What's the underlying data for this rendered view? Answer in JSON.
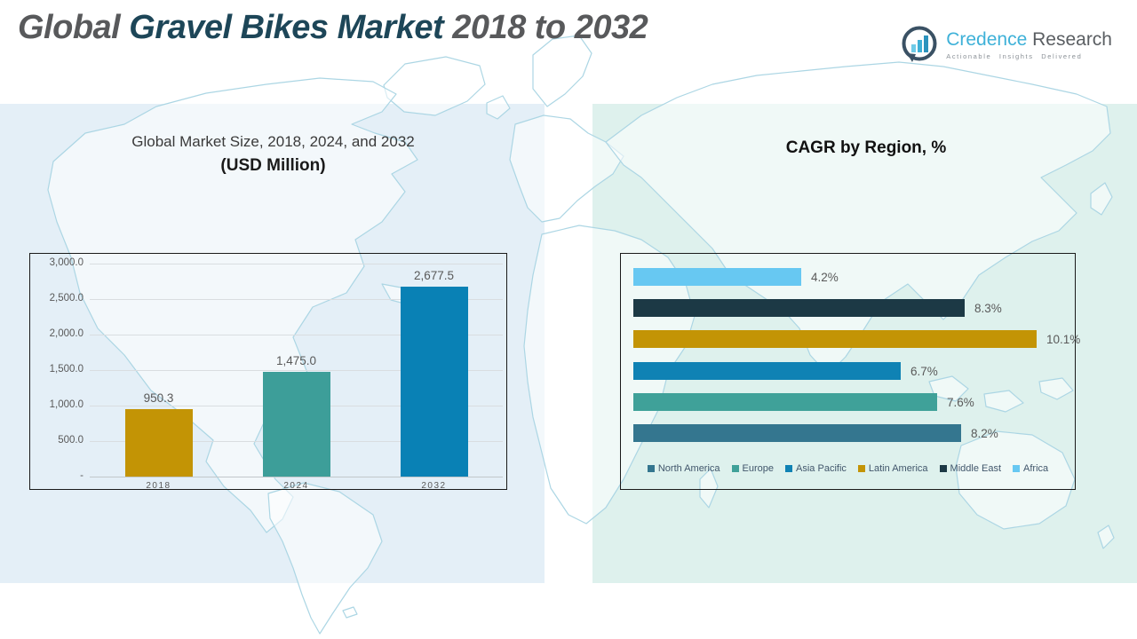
{
  "header": {
    "title": {
      "part1": "Global ",
      "part2": "Gravel Bikes Market ",
      "part3": "2018 to 2032"
    },
    "logo": {
      "brand1": "Credence",
      "brand2": " Research",
      "tagline": "Actionable Insights Delivered",
      "brand1_color": "#3eb1d8",
      "brand2_color": "#5a5e62",
      "icon": "bar-chart-bubble-icon"
    }
  },
  "chart_data": [
    {
      "type": "bar",
      "title": "Global Market Size, 2018, 2024, and 2032",
      "subtitle": "(USD Million)",
      "categories": [
        "2018",
        "2024",
        "2032"
      ],
      "values": [
        950.3,
        1475.0,
        2677.5
      ],
      "value_labels": [
        "950.3",
        "1,475.0",
        "2,677.5"
      ],
      "bar_colors": [
        "#c39405",
        "#3d9e99",
        "#0981b5"
      ],
      "ylim": [
        0,
        3000
      ],
      "ytick_labels": [
        "3,000.0",
        "2,500.0",
        "2,000.0",
        "1,500.0",
        "1,000.0",
        "500.0",
        "-"
      ],
      "grid": true,
      "legend_position": "none"
    },
    {
      "type": "bar-horizontal",
      "title": "CAGR by Region, %",
      "categories_top_to_bottom": [
        "Africa",
        "Middle East",
        "Latin America",
        "Asia Pacific",
        "Europe",
        "North America"
      ],
      "values": [
        4.2,
        8.3,
        10.1,
        6.7,
        7.6,
        8.2
      ],
      "value_labels": [
        "4.2%",
        "8.3%",
        "10.1%",
        "6.7%",
        "7.6%",
        "8.2%"
      ],
      "bar_colors": [
        "#67c8f2",
        "#1c3945",
        "#c39405",
        "#0f82b4",
        "#3fa199",
        "#34768f"
      ],
      "xmax": 10.1,
      "grid": false,
      "legend_position": "bottom",
      "legend": [
        {
          "label": "North America",
          "color": "#34768f"
        },
        {
          "label": "Europe",
          "color": "#3fa199"
        },
        {
          "label": "Asia Pacific",
          "color": "#0f82b4"
        },
        {
          "label": "Latin America",
          "color": "#c39405"
        },
        {
          "label": "Middle East",
          "color": "#1c3945"
        },
        {
          "label": "Africa",
          "color": "#67c8f2"
        }
      ]
    }
  ]
}
